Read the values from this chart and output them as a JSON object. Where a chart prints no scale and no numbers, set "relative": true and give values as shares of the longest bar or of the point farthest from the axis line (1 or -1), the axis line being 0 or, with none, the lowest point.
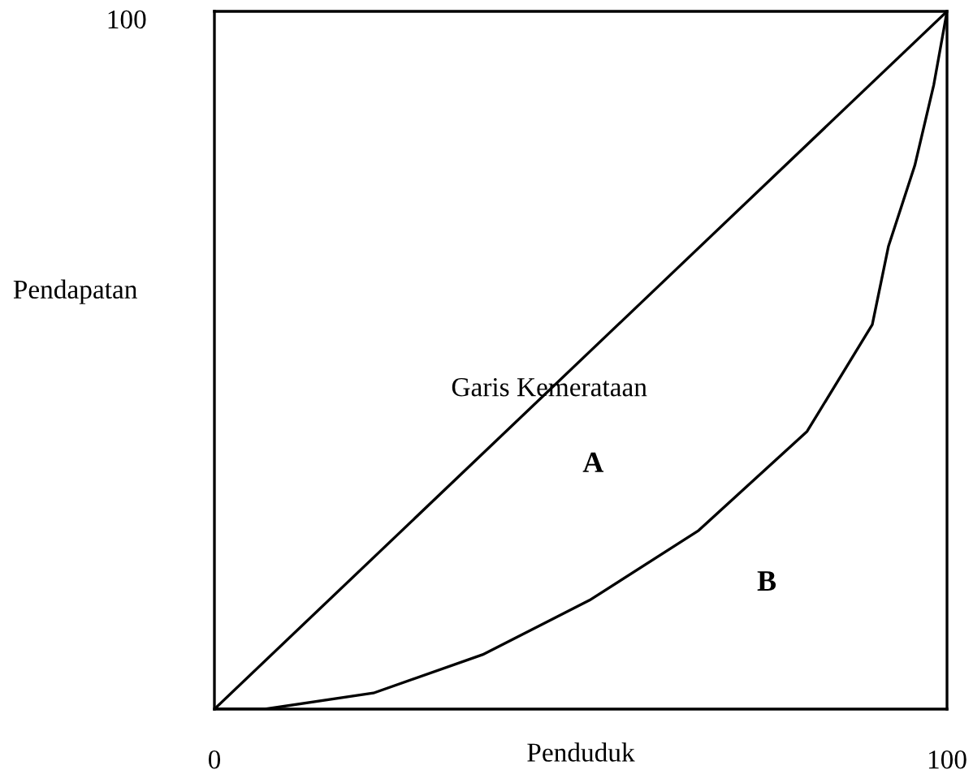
{
  "chart_data": {
    "type": "line",
    "xlabel": "Penduduk",
    "ylabel": "Pendapatan",
    "relative": true,
    "series": [
      {
        "x": [
          0,
          100
        ],
        "values": [
          0,
          1
        ],
        "color": "#000000"
      },
      {
        "x": [
          0,
          6.9,
          21.7,
          36.6,
          51.2,
          66.1,
          80.9,
          89.8,
          92.0,
          95.6,
          98.2,
          100
        ],
        "values": [
          0,
          0,
          0.023,
          0.078,
          0.156,
          0.256,
          0.398,
          0.551,
          0.663,
          0.779,
          0.895,
          1
        ],
        "color": "#000000"
      }
    ],
    "annotations": [
      {
        "text": "Garis Kemerataan",
        "x": 45.7,
        "y": 0.458
      },
      "A",
      "B",
      "100"
    ],
    "xlim": [
      0,
      100
    ],
    "xticks": [
      0,
      100
    ],
    "legend": false,
    "marker": "none",
    "line_style": "solid"
  }
}
